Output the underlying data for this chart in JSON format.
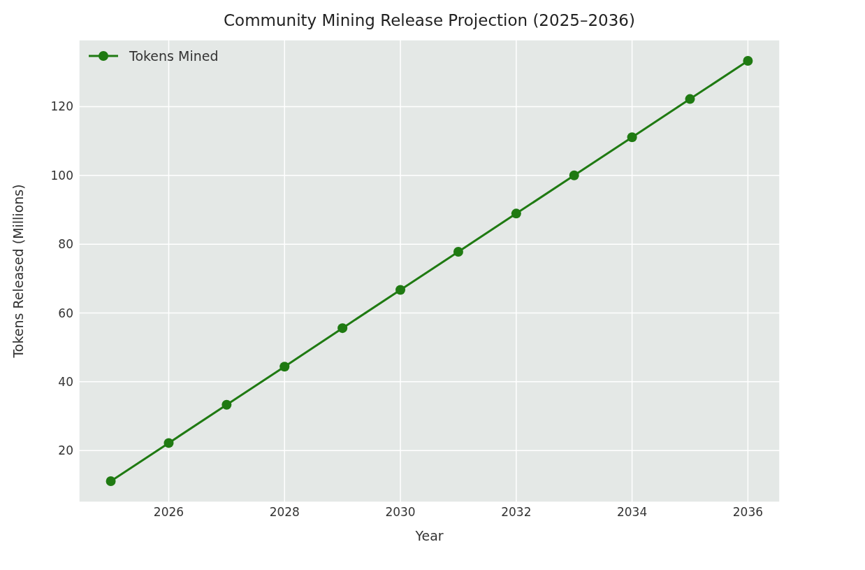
{
  "chart_data": {
    "type": "line",
    "title": "Community Mining Release Projection (2025–2036)",
    "xlabel": "Year",
    "ylabel": "Tokens Released (Millions)",
    "x": [
      2025,
      2026,
      2027,
      2028,
      2029,
      2030,
      2031,
      2032,
      2033,
      2034,
      2035,
      2036
    ],
    "series": [
      {
        "name": "Tokens Mined",
        "color": "#1f7a12",
        "values": [
          11.1,
          22.2,
          33.3,
          44.4,
          55.6,
          66.7,
          77.8,
          88.9,
          100,
          111.1,
          122.2,
          133.3
        ]
      }
    ],
    "xlim": [
      2024.45,
      2036.55
    ],
    "xticks": [
      2026,
      2028,
      2030,
      2032,
      2034,
      2036
    ],
    "ylim": [
      5,
      139.4
    ],
    "yticks": [
      20,
      40,
      60,
      80,
      100,
      120
    ],
    "grid": true,
    "legend": "top left",
    "marker": "circle",
    "line_style": "solid"
  }
}
